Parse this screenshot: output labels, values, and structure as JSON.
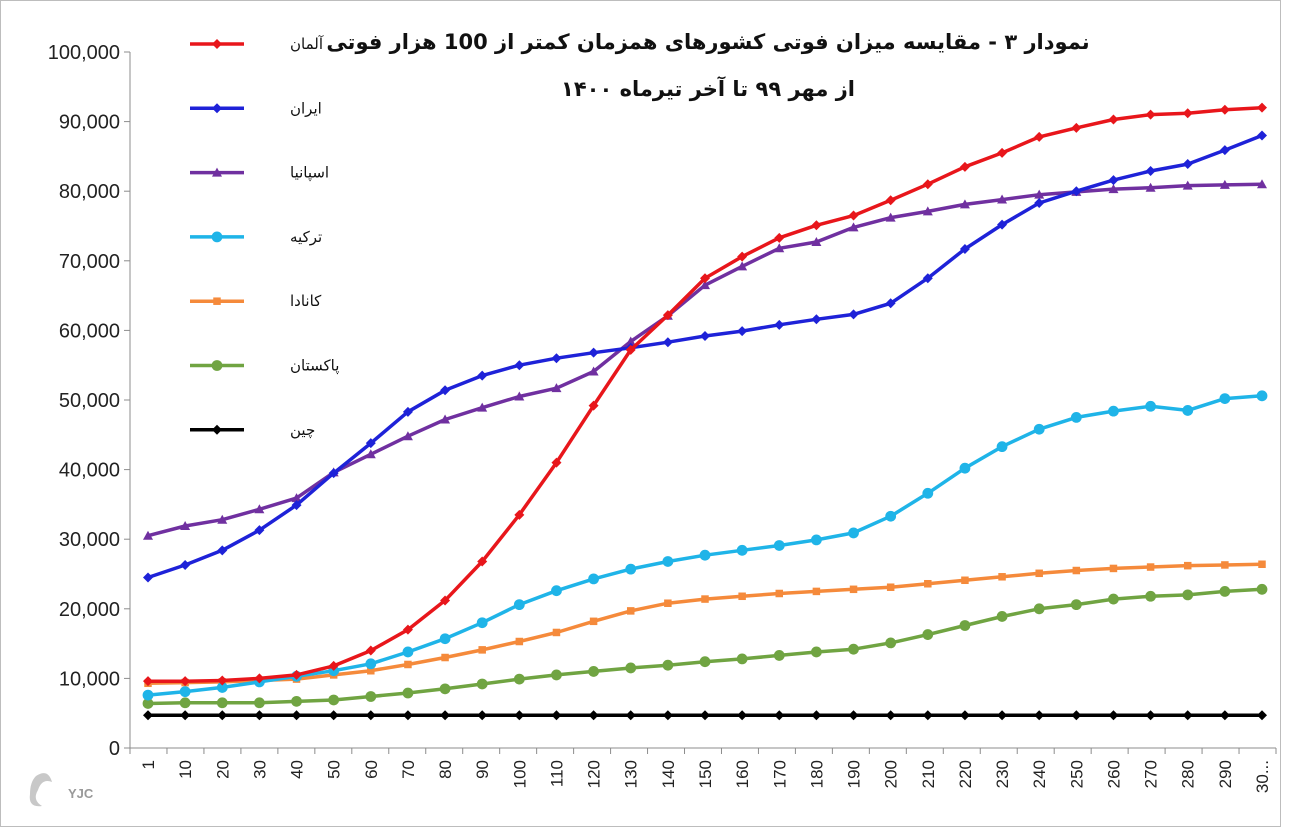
{
  "chart_data": {
    "type": "line",
    "title": "نمودار ۳ - مقایسه میزان فوتی کشورهای همزمان کمتر از 100 هزار فوتی",
    "subtitle": "از مهر ۹۹ تا آخر تیرماه ۱۴۰۰",
    "xlabel": "",
    "ylabel": "",
    "ylim": [
      0,
      100000
    ],
    "yticks": [
      "0",
      "10,000",
      "20,000",
      "30,000",
      "40,000",
      "50,000",
      "60,000",
      "70,000",
      "80,000",
      "90,000",
      "100,000"
    ],
    "categories": [
      "1",
      "10",
      "20",
      "30",
      "40",
      "50",
      "60",
      "70",
      "80",
      "90",
      "100",
      "110",
      "120",
      "130",
      "140",
      "150",
      "160",
      "170",
      "180",
      "190",
      "200",
      "210",
      "220",
      "230",
      "240",
      "250",
      "260",
      "270",
      "280",
      "290",
      "30..."
    ],
    "grid": false,
    "legend_position": "top-left",
    "series": [
      {
        "name": "آلمان",
        "color": "#e8161b",
        "marker": "diamond",
        "values": [
          9600,
          9600,
          9700,
          10000,
          10500,
          11800,
          14000,
          17000,
          21200,
          26800,
          33500,
          41000,
          49200,
          57200,
          62200,
          67500,
          70600,
          73300,
          75100,
          76500,
          78700,
          81000,
          83500,
          85500,
          87800,
          89100,
          90300,
          91000,
          91200,
          91700,
          92000
        ]
      },
      {
        "name": "ایران",
        "color": "#1e22d8",
        "marker": "diamond",
        "values": [
          24500,
          26300,
          28400,
          31300,
          34900,
          39500,
          43800,
          48300,
          51400,
          53500,
          55000,
          56000,
          56800,
          57500,
          58300,
          59200,
          59900,
          60800,
          61600,
          62300,
          63900,
          67500,
          71700,
          75200,
          78300,
          80000,
          81600,
          82900,
          83900,
          85900,
          88000
        ]
      },
      {
        "name": "اسپانیا",
        "color": "#7030a0",
        "marker": "triangle",
        "values": [
          30500,
          31900,
          32800,
          34300,
          35900,
          39600,
          42200,
          44800,
          47200,
          48900,
          50500,
          51700,
          54100,
          58400,
          62100,
          66500,
          69200,
          71800,
          72700,
          74800,
          76200,
          77100,
          78100,
          78800,
          79500,
          79900,
          80300,
          80500,
          80800,
          80900,
          81000
        ]
      },
      {
        "name": "ترکیه",
        "color": "#1fb4e8",
        "marker": "circle",
        "values": [
          7600,
          8100,
          8700,
          9500,
          10300,
          11100,
          12100,
          13800,
          15700,
          18000,
          20600,
          22600,
          24300,
          25700,
          26800,
          27700,
          28400,
          29100,
          29900,
          30900,
          33300,
          36600,
          40200,
          43300,
          45800,
          47500,
          48400,
          49100,
          48500,
          50200,
          50600
        ]
      },
      {
        "name": "کانادا",
        "color": "#f58a3b",
        "marker": "square",
        "values": [
          9300,
          9400,
          9500,
          9700,
          9900,
          10500,
          11100,
          12000,
          13000,
          14100,
          15300,
          16600,
          18200,
          19700,
          20800,
          21400,
          21800,
          22200,
          22500,
          22800,
          23100,
          23600,
          24100,
          24600,
          25100,
          25500,
          25800,
          26000,
          26200,
          26300,
          26400
        ]
      },
      {
        "name": "پاکستان",
        "color": "#70a442",
        "marker": "circle",
        "values": [
          6400,
          6500,
          6500,
          6500,
          6700,
          6900,
          7400,
          7900,
          8500,
          9200,
          9900,
          10500,
          11000,
          11500,
          11900,
          12400,
          12800,
          13300,
          13800,
          14200,
          15100,
          16300,
          17600,
          18900,
          20000,
          20600,
          21400,
          21800,
          22000,
          22500,
          22800
        ]
      },
      {
        "name": "چین",
        "color": "#000000",
        "marker": "diamond",
        "values": [
          4700,
          4700,
          4700,
          4700,
          4700,
          4700,
          4700,
          4700,
          4700,
          4700,
          4700,
          4700,
          4700,
          4700,
          4700,
          4700,
          4700,
          4700,
          4700,
          4700,
          4700,
          4700,
          4700,
          4700,
          4700,
          4700,
          4700,
          4700,
          4700,
          4700,
          4700
        ]
      }
    ]
  },
  "watermark": "YJC"
}
